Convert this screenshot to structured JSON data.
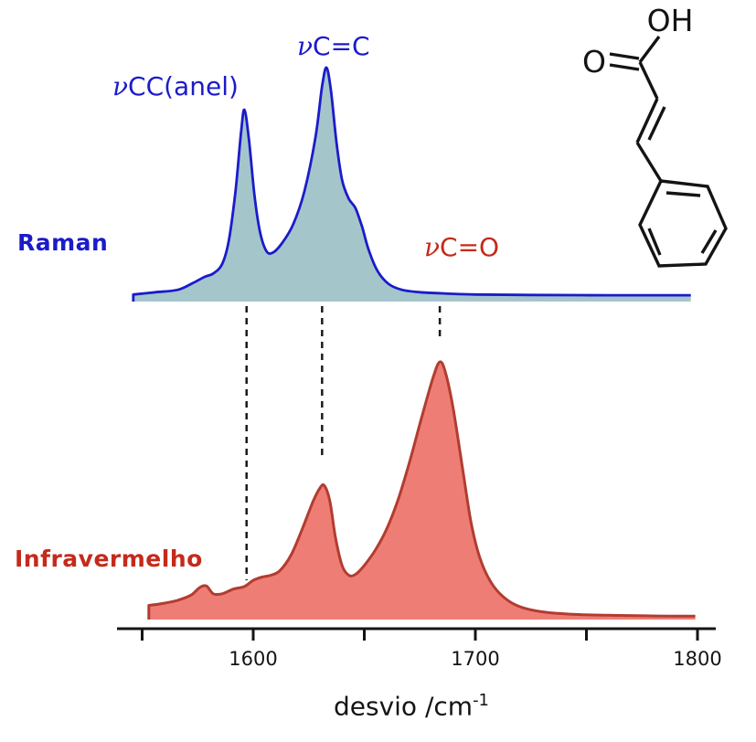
{
  "labels": {
    "raman": "Raman",
    "infrared": "Infravermelho",
    "peak_ring": "νCC(anel)",
    "peak_cc": "νC=C",
    "peak_co": "νC=O",
    "xaxis_base": "desvio /cm",
    "xaxis_sup": "-1"
  },
  "molecule": {
    "name": "trans-cinnamic acid (acido cinamico) skeletal structure",
    "atom_oh": "OH",
    "atom_o": "O"
  },
  "colors": {
    "raman_line": "#1b1bca",
    "raman_fill": "#a4c6cb",
    "ir_line": "#b23c30",
    "ir_fill": "#ee7e75",
    "blue_text": "#1b1bca",
    "red_text": "#c52a1b",
    "axis": "#141414",
    "guide": "#1a1a1a"
  },
  "chart_data": {
    "type": "area",
    "title": "Raman vs Infrared spectra of cinnamic acid",
    "xlabel": "desvio /cm⁻¹",
    "x_range": [
      1545,
      1800
    ],
    "x_ticks": [
      1550,
      1600,
      1650,
      1700,
      1750,
      1800
    ],
    "x_tick_labels": [
      "1600",
      "1700",
      "1800"
    ],
    "x_tick_label_values": [
      1600,
      1700,
      1800
    ],
    "grid": false,
    "legend_position": "left-inline",
    "series": [
      {
        "name": "Raman",
        "units_x": "cm-1",
        "units_y": "relative intensity (0-1)",
        "points": [
          [
            1546,
            0.03
          ],
          [
            1556,
            0.04
          ],
          [
            1566,
            0.05
          ],
          [
            1573,
            0.08
          ],
          [
            1578,
            0.105
          ],
          [
            1582,
            0.12
          ],
          [
            1586,
            0.16
          ],
          [
            1589,
            0.26
          ],
          [
            1592,
            0.47
          ],
          [
            1594.5,
            0.72
          ],
          [
            1596,
            0.82
          ],
          [
            1598,
            0.7
          ],
          [
            1600.5,
            0.46
          ],
          [
            1603,
            0.3
          ],
          [
            1606,
            0.215
          ],
          [
            1609,
            0.21
          ],
          [
            1613,
            0.25
          ],
          [
            1618,
            0.33
          ],
          [
            1623,
            0.47
          ],
          [
            1628,
            0.7
          ],
          [
            1631,
            0.92
          ],
          [
            1633,
            1.0
          ],
          [
            1635,
            0.9
          ],
          [
            1637.5,
            0.68
          ],
          [
            1640,
            0.52
          ],
          [
            1643,
            0.44
          ],
          [
            1646,
            0.4
          ],
          [
            1649,
            0.32
          ],
          [
            1652,
            0.22
          ],
          [
            1656,
            0.13
          ],
          [
            1661,
            0.075
          ],
          [
            1667,
            0.05
          ],
          [
            1675,
            0.04
          ],
          [
            1685,
            0.035
          ],
          [
            1700,
            0.03
          ],
          [
            1725,
            0.028
          ],
          [
            1760,
            0.027
          ],
          [
            1797,
            0.027
          ]
        ]
      },
      {
        "name": "Infravermelho",
        "units_x": "cm-1",
        "units_y": "relative intensity (0-1)",
        "points": [
          [
            1553,
            0.055
          ],
          [
            1559,
            0.062
          ],
          [
            1566,
            0.075
          ],
          [
            1572,
            0.095
          ],
          [
            1576,
            0.125
          ],
          [
            1579,
            0.13
          ],
          [
            1582,
            0.1
          ],
          [
            1586,
            0.1
          ],
          [
            1591,
            0.118
          ],
          [
            1596,
            0.128
          ],
          [
            1600,
            0.152
          ],
          [
            1604,
            0.165
          ],
          [
            1608,
            0.172
          ],
          [
            1612,
            0.19
          ],
          [
            1617,
            0.25
          ],
          [
            1622,
            0.35
          ],
          [
            1627,
            0.46
          ],
          [
            1630,
            0.51
          ],
          [
            1632,
            0.52
          ],
          [
            1634.5,
            0.46
          ],
          [
            1637,
            0.32
          ],
          [
            1640,
            0.21
          ],
          [
            1643,
            0.172
          ],
          [
            1646,
            0.175
          ],
          [
            1650,
            0.21
          ],
          [
            1655,
            0.27
          ],
          [
            1660,
            0.35
          ],
          [
            1665,
            0.46
          ],
          [
            1670,
            0.6
          ],
          [
            1676,
            0.79
          ],
          [
            1681,
            0.94
          ],
          [
            1684,
            1.0
          ],
          [
            1686.5,
            0.96
          ],
          [
            1690,
            0.82
          ],
          [
            1694,
            0.6
          ],
          [
            1698,
            0.38
          ],
          [
            1702,
            0.24
          ],
          [
            1707,
            0.145
          ],
          [
            1713,
            0.085
          ],
          [
            1720,
            0.05
          ],
          [
            1730,
            0.03
          ],
          [
            1745,
            0.02
          ],
          [
            1765,
            0.016
          ],
          [
            1782,
            0.014
          ],
          [
            1799,
            0.013
          ]
        ]
      }
    ],
    "peak_assignments": [
      {
        "label": "νCC(anel)",
        "wavenumber": 1596,
        "spectrum": "Raman"
      },
      {
        "label": "νC=C",
        "wavenumber": 1633,
        "spectrum": "Raman"
      },
      {
        "label": "νC=O",
        "wavenumber": 1684,
        "spectrum": "Infravermelho"
      }
    ],
    "guide_wavenumbers": [
      1597,
      1631,
      1684
    ]
  }
}
